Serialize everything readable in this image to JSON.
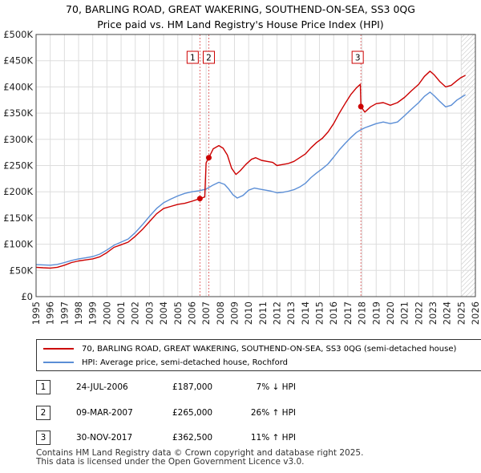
{
  "chart_data": {
    "type": "line",
    "title_line1": "70, BARLING ROAD, GREAT WAKERING, SOUTHEND-ON-SEA, SS3 0QG",
    "title_line2": "Price paid vs. HM Land Registry's House Price Index (HPI)",
    "xlim": [
      1995,
      2026
    ],
    "ylim": [
      0,
      500000
    ],
    "x_ticks": [
      1995,
      1996,
      1997,
      1998,
      1999,
      2000,
      2001,
      2002,
      2003,
      2004,
      2005,
      2006,
      2007,
      2008,
      2009,
      2010,
      2011,
      2012,
      2013,
      2014,
      2015,
      2016,
      2017,
      2018,
      2019,
      2020,
      2021,
      2022,
      2023,
      2024,
      2025,
      2026
    ],
    "y_ticks": [
      {
        "value": 0,
        "label": "£0"
      },
      {
        "value": 50000,
        "label": "£50K"
      },
      {
        "value": 100000,
        "label": "£100K"
      },
      {
        "value": 150000,
        "label": "£150K"
      },
      {
        "value": 200000,
        "label": "£200K"
      },
      {
        "value": 250000,
        "label": "£250K"
      },
      {
        "value": 300000,
        "label": "£300K"
      },
      {
        "value": 350000,
        "label": "£350K"
      },
      {
        "value": 400000,
        "label": "£400K"
      },
      {
        "value": 450000,
        "label": "£450K"
      },
      {
        "value": 500000,
        "label": "£500K"
      }
    ],
    "grid": true,
    "hatch_after_year": 2025.0,
    "series": [
      {
        "name": "70, BARLING ROAD, GREAT WAKERING, SOUTHEND-ON-SEA, SS3 0QG (semi-detached house)",
        "color": "#cc0000",
        "points": [
          [
            1995.0,
            56000
          ],
          [
            1995.5,
            55000
          ],
          [
            1996.0,
            54500
          ],
          [
            1996.5,
            56000
          ],
          [
            1997.0,
            60000
          ],
          [
            1997.5,
            65000
          ],
          [
            1998.0,
            68000
          ],
          [
            1998.5,
            70000
          ],
          [
            1999.0,
            72000
          ],
          [
            1999.5,
            76000
          ],
          [
            2000.0,
            84000
          ],
          [
            2000.5,
            94000
          ],
          [
            2001.0,
            99000
          ],
          [
            2001.5,
            104000
          ],
          [
            2002.0,
            115000
          ],
          [
            2002.5,
            128000
          ],
          [
            2003.0,
            143000
          ],
          [
            2003.5,
            158000
          ],
          [
            2004.0,
            168000
          ],
          [
            2004.5,
            172000
          ],
          [
            2005.0,
            176000
          ],
          [
            2005.5,
            178000
          ],
          [
            2006.0,
            182000
          ],
          [
            2006.56,
            187000
          ],
          [
            2006.9,
            190000
          ],
          [
            2007.0,
            255000
          ],
          [
            2007.19,
            265000
          ],
          [
            2007.5,
            282000
          ],
          [
            2007.9,
            288000
          ],
          [
            2008.2,
            283000
          ],
          [
            2008.5,
            270000
          ],
          [
            2008.8,
            245000
          ],
          [
            2009.1,
            233000
          ],
          [
            2009.4,
            240000
          ],
          [
            2009.8,
            252000
          ],
          [
            2010.2,
            262000
          ],
          [
            2010.5,
            265000
          ],
          [
            2010.9,
            260000
          ],
          [
            2011.3,
            258000
          ],
          [
            2011.7,
            256000
          ],
          [
            2012.0,
            250000
          ],
          [
            2012.4,
            252000
          ],
          [
            2012.8,
            254000
          ],
          [
            2013.2,
            258000
          ],
          [
            2013.6,
            265000
          ],
          [
            2014.0,
            272000
          ],
          [
            2014.4,
            284000
          ],
          [
            2014.8,
            294000
          ],
          [
            2015.2,
            302000
          ],
          [
            2015.6,
            314000
          ],
          [
            2016.0,
            330000
          ],
          [
            2016.4,
            350000
          ],
          [
            2016.8,
            368000
          ],
          [
            2017.2,
            385000
          ],
          [
            2017.6,
            398000
          ],
          [
            2017.88,
            405000
          ],
          [
            2017.92,
            362500
          ],
          [
            2018.2,
            352000
          ],
          [
            2018.6,
            362000
          ],
          [
            2019.0,
            368000
          ],
          [
            2019.5,
            370000
          ],
          [
            2020.0,
            365000
          ],
          [
            2020.5,
            370000
          ],
          [
            2021.0,
            380000
          ],
          [
            2021.5,
            393000
          ],
          [
            2022.0,
            405000
          ],
          [
            2022.4,
            420000
          ],
          [
            2022.8,
            430000
          ],
          [
            2023.1,
            423000
          ],
          [
            2023.5,
            410000
          ],
          [
            2023.9,
            400000
          ],
          [
            2024.3,
            403000
          ],
          [
            2024.7,
            412000
          ],
          [
            2025.0,
            418000
          ],
          [
            2025.3,
            422000
          ]
        ]
      },
      {
        "name": "HPI: Average price, semi-detached house, Rochford",
        "color": "#5b8ed6",
        "points": [
          [
            1995.0,
            61000
          ],
          [
            1995.5,
            60500
          ],
          [
            1996.0,
            60000
          ],
          [
            1996.5,
            61500
          ],
          [
            1997.0,
            65000
          ],
          [
            1997.5,
            69000
          ],
          [
            1998.0,
            72000
          ],
          [
            1998.5,
            74000
          ],
          [
            1999.0,
            76500
          ],
          [
            1999.5,
            81000
          ],
          [
            2000.0,
            89000
          ],
          [
            2000.5,
            98000
          ],
          [
            2001.0,
            104000
          ],
          [
            2001.5,
            110000
          ],
          [
            2002.0,
            122000
          ],
          [
            2002.5,
            137000
          ],
          [
            2003.0,
            153000
          ],
          [
            2003.5,
            168000
          ],
          [
            2004.0,
            179000
          ],
          [
            2004.5,
            186000
          ],
          [
            2005.0,
            192000
          ],
          [
            2005.5,
            197000
          ],
          [
            2006.0,
            200000
          ],
          [
            2006.5,
            202000
          ],
          [
            2007.0,
            205000
          ],
          [
            2007.5,
            213000
          ],
          [
            2007.9,
            218000
          ],
          [
            2008.3,
            214000
          ],
          [
            2008.6,
            205000
          ],
          [
            2008.9,
            194000
          ],
          [
            2009.2,
            188000
          ],
          [
            2009.6,
            193000
          ],
          [
            2010.0,
            203000
          ],
          [
            2010.4,
            207000
          ],
          [
            2010.8,
            205000
          ],
          [
            2011.2,
            203000
          ],
          [
            2011.6,
            201000
          ],
          [
            2012.0,
            198000
          ],
          [
            2012.4,
            199000
          ],
          [
            2012.8,
            201000
          ],
          [
            2013.2,
            204000
          ],
          [
            2013.6,
            209000
          ],
          [
            2014.0,
            216000
          ],
          [
            2014.4,
            227000
          ],
          [
            2014.8,
            236000
          ],
          [
            2015.2,
            244000
          ],
          [
            2015.6,
            253000
          ],
          [
            2016.0,
            266000
          ],
          [
            2016.4,
            280000
          ],
          [
            2016.8,
            292000
          ],
          [
            2017.2,
            303000
          ],
          [
            2017.6,
            313000
          ],
          [
            2017.9,
            318000
          ],
          [
            2018.2,
            322000
          ],
          [
            2018.6,
            326000
          ],
          [
            2019.0,
            330000
          ],
          [
            2019.5,
            333000
          ],
          [
            2020.0,
            330000
          ],
          [
            2020.5,
            333000
          ],
          [
            2021.0,
            345000
          ],
          [
            2021.5,
            358000
          ],
          [
            2022.0,
            370000
          ],
          [
            2022.4,
            382000
          ],
          [
            2022.8,
            390000
          ],
          [
            2023.1,
            383000
          ],
          [
            2023.5,
            372000
          ],
          [
            2023.9,
            362000
          ],
          [
            2024.3,
            365000
          ],
          [
            2024.7,
            375000
          ],
          [
            2025.0,
            380000
          ],
          [
            2025.3,
            385000
          ]
        ]
      }
    ],
    "sale_markers": [
      {
        "label": "1",
        "x": 2006.56,
        "y": 187000
      },
      {
        "label": "2",
        "x": 2007.19,
        "y": 265000
      },
      {
        "label": "3",
        "x": 2017.92,
        "y": 362500
      }
    ]
  },
  "legend": {
    "property_label": "70, BARLING ROAD, GREAT WAKERING, SOUTHEND-ON-SEA, SS3 0QG (semi-detached house)",
    "hpi_label": "HPI: Average price, semi-detached house, Rochford",
    "property_color": "#cc0000",
    "hpi_color": "#5b8ed6"
  },
  "sales": [
    {
      "num": "1",
      "date": "24-JUL-2006",
      "price": "£187,000",
      "hpi": "7% ↓ HPI"
    },
    {
      "num": "2",
      "date": "09-MAR-2007",
      "price": "£265,000",
      "hpi": "26% ↑ HPI"
    },
    {
      "num": "3",
      "date": "30-NOV-2017",
      "price": "£362,500",
      "hpi": "11% ↑ HPI"
    }
  ],
  "footer": {
    "line1": "Contains HM Land Registry data © Crown copyright and database right 2025.",
    "line2": "This data is licensed under the Open Government Licence v3.0."
  }
}
